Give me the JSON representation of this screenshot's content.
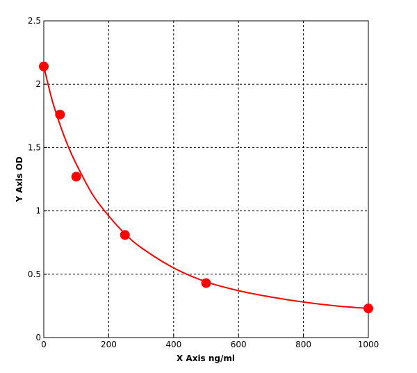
{
  "chart_data": {
    "type": "scatter",
    "x_label": "X Axis ng/ml",
    "y_label": "Y Axis OD",
    "xlim": [
      0,
      1000
    ],
    "ylim": [
      0,
      2.5
    ],
    "xticks": [
      0,
      200,
      400,
      600,
      800,
      1000
    ],
    "yticks": [
      0,
      0.5,
      1,
      1.5,
      2,
      2.5
    ],
    "grid": true,
    "series": [
      {
        "color": "#ff0000",
        "style": "markers",
        "x": [
          0,
          50,
          100,
          250,
          500,
          1000
        ],
        "values": [
          2.14,
          1.76,
          1.27,
          0.81,
          0.43,
          0.23
        ]
      },
      {
        "color": "#ff0000",
        "style": "line",
        "x": [
          0,
          25,
          50,
          75,
          100,
          150,
          200,
          250,
          300,
          400,
          500,
          600,
          700,
          800,
          900,
          1000
        ],
        "values": [
          2.14,
          1.88,
          1.68,
          1.51,
          1.37,
          1.13,
          0.96,
          0.82,
          0.71,
          0.55,
          0.44,
          0.37,
          0.32,
          0.28,
          0.25,
          0.23
        ]
      }
    ]
  }
}
